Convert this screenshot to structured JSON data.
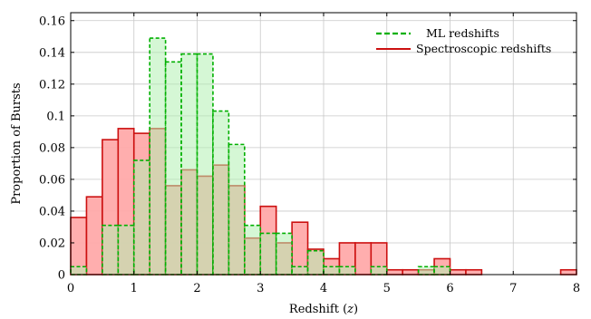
{
  "chart_data": {
    "type": "bar",
    "xlabel_prefix": "Redshift (",
    "xlabel_var": "z",
    "xlabel_suffix": ")",
    "ylabel": "Proportion of Bursts",
    "xlim": [
      0,
      8
    ],
    "ylim": [
      0,
      0.165
    ],
    "bin_width": 0.25,
    "grid": true,
    "legend_position": "top-right",
    "x_ticks": [
      0,
      1,
      2,
      3,
      4,
      5,
      6,
      7,
      8
    ],
    "x_tick_labels": [
      "0",
      "1",
      "2",
      "3",
      "4",
      "5",
      "6",
      "7",
      "8"
    ],
    "y_ticks": [
      0,
      0.02,
      0.04,
      0.06,
      0.08,
      0.1,
      0.12,
      0.14,
      0.16
    ],
    "y_tick_labels": [
      "0",
      "0.02",
      "0.04",
      "0.06",
      "0.08",
      "0.1",
      "0.12",
      "0.14",
      "0.16"
    ],
    "series": [
      {
        "name": "ML redshifts",
        "style": "dashed",
        "line_color": "#00b000",
        "fill_color": "#b3f0b3",
        "bin_starts": [
          0,
          0.25,
          0.5,
          0.75,
          1.0,
          1.25,
          1.5,
          1.75,
          2.0,
          2.25,
          2.5,
          2.75,
          3.0,
          3.25,
          3.5,
          3.75,
          4.0,
          4.25,
          4.5,
          4.75,
          5.0,
          5.25,
          5.5,
          5.75,
          6.0,
          6.25,
          6.5,
          6.75,
          7.0,
          7.25,
          7.5,
          7.75
        ],
        "values": [
          0.005,
          0,
          0.031,
          0.031,
          0.072,
          0.149,
          0.134,
          0.139,
          0.139,
          0.103,
          0.082,
          0.031,
          0.026,
          0.026,
          0.005,
          0.015,
          0.005,
          0.005,
          0,
          0.005,
          0,
          0,
          0.005,
          0.005,
          0,
          0,
          0,
          0,
          0,
          0,
          0,
          0
        ]
      },
      {
        "name": "Spectroscopic redshifts",
        "style": "solid",
        "line_color": "#cc1010",
        "fill_color": "#ffaaaa",
        "bin_starts": [
          0,
          0.25,
          0.5,
          0.75,
          1.0,
          1.25,
          1.5,
          1.75,
          2.0,
          2.25,
          2.5,
          2.75,
          3.0,
          3.25,
          3.5,
          3.75,
          4.0,
          4.25,
          4.5,
          4.75,
          5.0,
          5.25,
          5.5,
          5.75,
          6.0,
          6.25,
          6.5,
          6.75,
          7.0,
          7.25,
          7.5,
          7.75
        ],
        "values": [
          0.036,
          0.049,
          0.085,
          0.092,
          0.089,
          0.092,
          0.056,
          0.066,
          0.062,
          0.069,
          0.056,
          0.023,
          0.043,
          0.02,
          0.033,
          0.016,
          0.01,
          0.02,
          0.02,
          0.02,
          0.003,
          0.003,
          0.003,
          0.01,
          0.003,
          0.003,
          0,
          0,
          0,
          0,
          0,
          0.003
        ]
      }
    ]
  }
}
